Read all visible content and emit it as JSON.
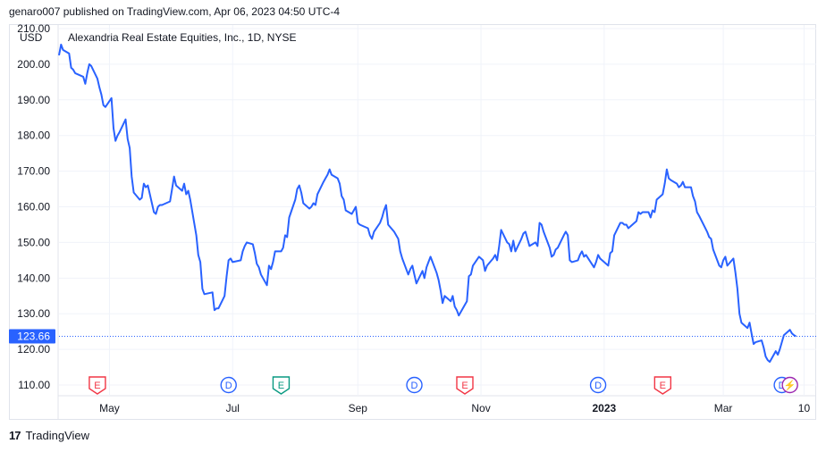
{
  "published_line": "genaro007 published on TradingView.com, Apr 06, 2023 04:50 UTC-4",
  "footer": {
    "logo_mark": "17",
    "brand": "TradingView"
  },
  "colors": {
    "line": "#2962ff",
    "price_label_bg": "#2962ff",
    "earnings": "#f23645",
    "dividend": "#2962ff",
    "earnings_positive": "#089981",
    "split": "#9c27b0",
    "grid": "#f0f3fa"
  },
  "chart_data": {
    "type": "line",
    "currency": "USD",
    "title": "Alexandria Real Estate Equities, Inc., 1D, NYSE",
    "last_price": "123.66",
    "ylim": [
      107,
      211
    ],
    "y_ticks": [
      "210.00",
      "200.00",
      "190.00",
      "180.00",
      "170.00",
      "160.00",
      "150.00",
      "140.00",
      "130.00",
      "120.00",
      "110.00"
    ],
    "x_ticks": [
      {
        "label": "May",
        "date": "2022-05-01",
        "bold": false
      },
      {
        "label": "Jul",
        "date": "2022-07-01",
        "bold": false
      },
      {
        "label": "Sep",
        "date": "2022-09-01",
        "bold": false
      },
      {
        "label": "Nov",
        "date": "2022-11-01",
        "bold": false
      },
      {
        "label": "2023",
        "date": "2023-01-01",
        "bold": true
      },
      {
        "label": "Mar",
        "date": "2023-03-01",
        "bold": false
      },
      {
        "label": "10",
        "date": "2023-04-10",
        "bold": false
      }
    ],
    "xlim": [
      "2022-04-06",
      "2023-04-16"
    ],
    "series": [
      {
        "values": [
          [
            "2022-04-06",
            202.5
          ],
          [
            "2022-04-07",
            205.5
          ],
          [
            "2022-04-08",
            204.0
          ],
          [
            "2022-04-11",
            203.0
          ],
          [
            "2022-04-12",
            199.0
          ],
          [
            "2022-04-13",
            198.5
          ],
          [
            "2022-04-14",
            197.5
          ],
          [
            "2022-04-18",
            196.5
          ],
          [
            "2022-04-19",
            194.5
          ],
          [
            "2022-04-20",
            197.5
          ],
          [
            "2022-04-21",
            200.0
          ],
          [
            "2022-04-22",
            199.5
          ],
          [
            "2022-04-25",
            196.0
          ],
          [
            "2022-04-26",
            193.5
          ],
          [
            "2022-04-27",
            191.5
          ],
          [
            "2022-04-28",
            188.5
          ],
          [
            "2022-04-29",
            188.0
          ],
          [
            "2022-05-02",
            190.5
          ],
          [
            "2022-05-03",
            182.0
          ],
          [
            "2022-05-04",
            178.5
          ],
          [
            "2022-05-05",
            180.0
          ],
          [
            "2022-05-06",
            181.0
          ],
          [
            "2022-05-09",
            184.5
          ],
          [
            "2022-05-10",
            179.0
          ],
          [
            "2022-05-11",
            176.5
          ],
          [
            "2022-05-12",
            168.5
          ],
          [
            "2022-05-13",
            164.0
          ],
          [
            "2022-05-16",
            162.0
          ],
          [
            "2022-05-17",
            162.5
          ],
          [
            "2022-05-18",
            166.5
          ],
          [
            "2022-05-19",
            165.5
          ],
          [
            "2022-05-20",
            166.0
          ],
          [
            "2022-05-23",
            158.5
          ],
          [
            "2022-05-24",
            158.0
          ],
          [
            "2022-05-25",
            160.0
          ],
          [
            "2022-05-26",
            160.5
          ],
          [
            "2022-05-27",
            160.5
          ],
          [
            "2022-05-31",
            161.5
          ],
          [
            "2022-06-01",
            165.0
          ],
          [
            "2022-06-02",
            168.5
          ],
          [
            "2022-06-03",
            166.0
          ],
          [
            "2022-06-06",
            164.5
          ],
          [
            "2022-06-07",
            166.5
          ],
          [
            "2022-06-08",
            163.5
          ],
          [
            "2022-06-09",
            164.5
          ],
          [
            "2022-06-10",
            162.0
          ],
          [
            "2022-06-13",
            152.0
          ],
          [
            "2022-06-14",
            146.5
          ],
          [
            "2022-06-15",
            144.5
          ],
          [
            "2022-06-16",
            137.0
          ],
          [
            "2022-06-17",
            135.5
          ],
          [
            "2022-06-21",
            136.0
          ],
          [
            "2022-06-22",
            131.0
          ],
          [
            "2022-06-23",
            131.5
          ],
          [
            "2022-06-24",
            131.5
          ],
          [
            "2022-06-27",
            135.0
          ],
          [
            "2022-06-28",
            140.5
          ],
          [
            "2022-06-29",
            145.0
          ],
          [
            "2022-06-30",
            145.5
          ],
          [
            "2022-07-01",
            144.5
          ],
          [
            "2022-07-05",
            145.0
          ],
          [
            "2022-07-06",
            147.5
          ],
          [
            "2022-07-07",
            149.0
          ],
          [
            "2022-07-08",
            150.0
          ],
          [
            "2022-07-11",
            149.5
          ],
          [
            "2022-07-12",
            147.0
          ],
          [
            "2022-07-13",
            144.0
          ],
          [
            "2022-07-14",
            143.0
          ],
          [
            "2022-07-15",
            141.0
          ],
          [
            "2022-07-18",
            138.0
          ],
          [
            "2022-07-19",
            143.5
          ],
          [
            "2022-07-20",
            142.5
          ],
          [
            "2022-07-21",
            144.5
          ],
          [
            "2022-07-22",
            147.5
          ],
          [
            "2022-07-25",
            147.5
          ],
          [
            "2022-07-26",
            148.5
          ],
          [
            "2022-07-27",
            152.0
          ],
          [
            "2022-07-28",
            151.5
          ],
          [
            "2022-07-29",
            157.0
          ],
          [
            "2022-08-01",
            162.0
          ],
          [
            "2022-08-02",
            165.0
          ],
          [
            "2022-08-03",
            166.0
          ],
          [
            "2022-08-04",
            164.0
          ],
          [
            "2022-08-05",
            161.0
          ],
          [
            "2022-08-08",
            159.5
          ],
          [
            "2022-08-09",
            160.0
          ],
          [
            "2022-08-10",
            161.0
          ],
          [
            "2022-08-11",
            160.5
          ],
          [
            "2022-08-12",
            163.5
          ],
          [
            "2022-08-15",
            167.0
          ],
          [
            "2022-08-16",
            168.0
          ],
          [
            "2022-08-17",
            169.0
          ],
          [
            "2022-08-18",
            170.5
          ],
          [
            "2022-08-19",
            169.0
          ],
          [
            "2022-08-22",
            168.0
          ],
          [
            "2022-08-23",
            166.5
          ],
          [
            "2022-08-24",
            163.0
          ],
          [
            "2022-08-25",
            162.0
          ],
          [
            "2022-08-26",
            159.0
          ],
          [
            "2022-08-29",
            158.0
          ],
          [
            "2022-08-30",
            159.0
          ],
          [
            "2022-08-31",
            160.0
          ],
          [
            "2022-09-01",
            155.5
          ],
          [
            "2022-09-02",
            155.0
          ],
          [
            "2022-09-06",
            154.0
          ],
          [
            "2022-09-07",
            152.0
          ],
          [
            "2022-09-08",
            151.0
          ],
          [
            "2022-09-09",
            153.0
          ],
          [
            "2022-09-12",
            155.5
          ],
          [
            "2022-09-13",
            157.0
          ],
          [
            "2022-09-14",
            159.0
          ],
          [
            "2022-09-15",
            160.5
          ],
          [
            "2022-09-16",
            155.0
          ],
          [
            "2022-09-19",
            153.0
          ],
          [
            "2022-09-20",
            152.0
          ],
          [
            "2022-09-21",
            151.0
          ],
          [
            "2022-09-22",
            147.5
          ],
          [
            "2022-09-23",
            145.5
          ],
          [
            "2022-09-26",
            141.0
          ],
          [
            "2022-09-27",
            142.5
          ],
          [
            "2022-09-28",
            143.5
          ],
          [
            "2022-09-29",
            141.0
          ],
          [
            "2022-09-30",
            138.5
          ],
          [
            "2022-10-03",
            142.0
          ],
          [
            "2022-10-04",
            140.0
          ],
          [
            "2022-10-05",
            143.0
          ],
          [
            "2022-10-06",
            144.5
          ],
          [
            "2022-10-07",
            146.0
          ],
          [
            "2022-10-10",
            141.5
          ],
          [
            "2022-10-11",
            139.5
          ],
          [
            "2022-10-12",
            136.5
          ],
          [
            "2022-10-13",
            133.0
          ],
          [
            "2022-10-14",
            135.0
          ],
          [
            "2022-10-17",
            133.5
          ],
          [
            "2022-10-18",
            135.0
          ],
          [
            "2022-10-19",
            132.0
          ],
          [
            "2022-10-20",
            131.0
          ],
          [
            "2022-10-21",
            129.5
          ],
          [
            "2022-10-24",
            132.5
          ],
          [
            "2022-10-25",
            133.5
          ],
          [
            "2022-10-26",
            140.5
          ],
          [
            "2022-10-27",
            141.0
          ],
          [
            "2022-10-28",
            143.5
          ],
          [
            "2022-10-31",
            146.0
          ],
          [
            "2022-11-01",
            145.5
          ],
          [
            "2022-11-02",
            145.0
          ],
          [
            "2022-11-03",
            142.0
          ],
          [
            "2022-11-04",
            143.5
          ],
          [
            "2022-11-07",
            145.5
          ],
          [
            "2022-11-08",
            146.5
          ],
          [
            "2022-11-09",
            145.0
          ],
          [
            "2022-11-10",
            149.0
          ],
          [
            "2022-11-11",
            153.5
          ],
          [
            "2022-11-14",
            150.0
          ],
          [
            "2022-11-15",
            149.5
          ],
          [
            "2022-11-16",
            147.5
          ],
          [
            "2022-11-17",
            150.5
          ],
          [
            "2022-11-18",
            147.5
          ],
          [
            "2022-11-21",
            151.0
          ],
          [
            "2022-11-22",
            152.5
          ],
          [
            "2022-11-23",
            153.0
          ],
          [
            "2022-11-25",
            149.0
          ],
          [
            "2022-11-28",
            150.0
          ],
          [
            "2022-11-29",
            149.0
          ],
          [
            "2022-11-30",
            155.5
          ],
          [
            "2022-12-01",
            155.0
          ],
          [
            "2022-12-02",
            153.0
          ],
          [
            "2022-12-05",
            148.5
          ],
          [
            "2022-12-06",
            146.0
          ],
          [
            "2022-12-07",
            146.5
          ],
          [
            "2022-12-08",
            148.0
          ],
          [
            "2022-12-09",
            148.5
          ],
          [
            "2022-12-12",
            152.0
          ],
          [
            "2022-12-13",
            153.0
          ],
          [
            "2022-12-14",
            152.0
          ],
          [
            "2022-12-15",
            145.0
          ],
          [
            "2022-12-16",
            144.5
          ],
          [
            "2022-12-19",
            145.0
          ],
          [
            "2022-12-20",
            146.5
          ],
          [
            "2022-12-21",
            147.5
          ],
          [
            "2022-12-22",
            146.0
          ],
          [
            "2022-12-23",
            146.5
          ],
          [
            "2022-12-27",
            143.0
          ],
          [
            "2022-12-28",
            144.5
          ],
          [
            "2022-12-29",
            146.5
          ],
          [
            "2022-12-30",
            145.5
          ],
          [
            "2023-01-03",
            143.5
          ],
          [
            "2023-01-04",
            147.0
          ],
          [
            "2023-01-05",
            147.5
          ],
          [
            "2023-01-06",
            152.0
          ],
          [
            "2023-01-09",
            155.5
          ],
          [
            "2023-01-10",
            155.5
          ],
          [
            "2023-01-11",
            155.0
          ],
          [
            "2023-01-12",
            155.0
          ],
          [
            "2023-01-13",
            154.0
          ],
          [
            "2023-01-17",
            156.0
          ],
          [
            "2023-01-18",
            158.5
          ],
          [
            "2023-01-19",
            158.0
          ],
          [
            "2023-01-20",
            158.5
          ],
          [
            "2023-01-23",
            158.5
          ],
          [
            "2023-01-24",
            157.0
          ],
          [
            "2023-01-25",
            159.0
          ],
          [
            "2023-01-26",
            158.5
          ],
          [
            "2023-01-27",
            162.0
          ],
          [
            "2023-01-30",
            163.5
          ],
          [
            "2023-01-31",
            166.5
          ],
          [
            "2023-02-01",
            170.5
          ],
          [
            "2023-02-02",
            168.0
          ],
          [
            "2023-02-03",
            167.5
          ],
          [
            "2023-02-06",
            166.5
          ],
          [
            "2023-02-07",
            165.5
          ],
          [
            "2023-02-08",
            166.0
          ],
          [
            "2023-02-09",
            167.0
          ],
          [
            "2023-02-10",
            165.5
          ],
          [
            "2023-02-13",
            165.5
          ],
          [
            "2023-02-14",
            163.0
          ],
          [
            "2023-02-15",
            161.5
          ],
          [
            "2023-02-16",
            158.5
          ],
          [
            "2023-02-17",
            157.5
          ],
          [
            "2023-02-21",
            153.0
          ],
          [
            "2023-02-22",
            151.5
          ],
          [
            "2023-02-23",
            151.0
          ],
          [
            "2023-02-24",
            148.0
          ],
          [
            "2023-02-27",
            143.5
          ],
          [
            "2023-02-28",
            143.0
          ],
          [
            "2023-03-01",
            145.0
          ],
          [
            "2023-03-02",
            146.0
          ],
          [
            "2023-03-03",
            143.5
          ],
          [
            "2023-03-06",
            145.5
          ],
          [
            "2023-03-07",
            141.5
          ],
          [
            "2023-03-08",
            137.0
          ],
          [
            "2023-03-09",
            130.0
          ],
          [
            "2023-03-10",
            127.5
          ],
          [
            "2023-03-13",
            126.0
          ],
          [
            "2023-03-14",
            127.5
          ],
          [
            "2023-03-15",
            124.5
          ],
          [
            "2023-03-16",
            121.5
          ],
          [
            "2023-03-17",
            122.0
          ],
          [
            "2023-03-20",
            122.5
          ],
          [
            "2023-03-21",
            120.5
          ],
          [
            "2023-03-22",
            118.0
          ],
          [
            "2023-03-23",
            117.0
          ],
          [
            "2023-03-24",
            116.5
          ],
          [
            "2023-03-27",
            119.5
          ],
          [
            "2023-03-28",
            118.5
          ],
          [
            "2023-03-29",
            120.0
          ],
          [
            "2023-03-30",
            122.0
          ],
          [
            "2023-03-31",
            124.0
          ],
          [
            "2023-04-03",
            125.5
          ],
          [
            "2023-04-04",
            124.5
          ],
          [
            "2023-04-05",
            124.0
          ],
          [
            "2023-04-06",
            123.66
          ]
        ]
      }
    ],
    "events": [
      {
        "type": "E",
        "kind": "earnings",
        "date": "2022-04-25"
      },
      {
        "type": "D",
        "kind": "dividend",
        "date": "2022-06-29"
      },
      {
        "type": "E",
        "kind": "earnings_positive",
        "date": "2022-07-25"
      },
      {
        "type": "D",
        "kind": "dividend",
        "date": "2022-09-29"
      },
      {
        "type": "E",
        "kind": "earnings",
        "date": "2022-10-24"
      },
      {
        "type": "D",
        "kind": "dividend",
        "date": "2022-12-29"
      },
      {
        "type": "E",
        "kind": "earnings",
        "date": "2023-01-30"
      },
      {
        "type": "D",
        "kind": "dividend",
        "date": "2023-03-30"
      },
      {
        "type": "⚡",
        "kind": "split",
        "date": "2023-04-03"
      }
    ]
  }
}
